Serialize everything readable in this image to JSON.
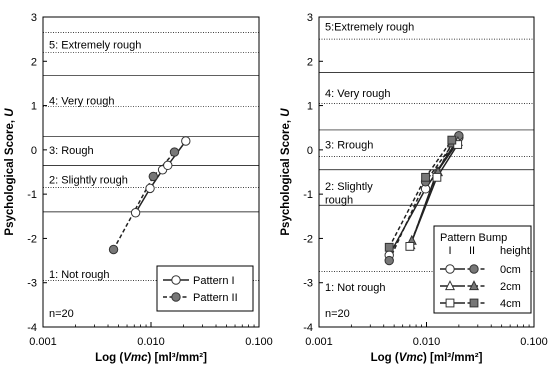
{
  "chart_data": [
    {
      "type": "line",
      "xlabel_prefix": "Log (",
      "xlabel_var": "Vmc",
      "xlabel_suffix": ")  [ml³/mm²]",
      "ylabel_prefix": "Psychological Score, ",
      "ylabel_var": "U",
      "x_scale": "log",
      "xlim": [
        0.001,
        0.1
      ],
      "ylim": [
        -4,
        3
      ],
      "x_ticks": [
        0.001,
        0.01,
        0.1
      ],
      "x_tick_labels": [
        "0.001",
        "0.010",
        "0.100"
      ],
      "y_ticks": [
        -4,
        -3,
        -2,
        -1,
        0,
        1,
        2,
        3
      ],
      "y_tick_labels": [
        "-4",
        "-3",
        "-2",
        "-1",
        "0",
        "1",
        "2",
        "3"
      ],
      "category_lines": [
        {
          "y": 2.65,
          "style": "dotted"
        },
        {
          "y": 2.2,
          "style": "dotted"
        },
        {
          "y": 1.68,
          "style": "solid"
        },
        {
          "y": 0.98,
          "style": "dotted"
        },
        {
          "y": 0.3,
          "style": "solid"
        },
        {
          "y": -0.35,
          "style": "solid"
        },
        {
          "y": -0.85,
          "style": "dotted"
        },
        {
          "y": -1.4,
          "style": "solid"
        },
        {
          "y": -2.95,
          "style": "dotted"
        }
      ],
      "categories": [
        {
          "label": "5: Extremely rough",
          "y": 2.38
        },
        {
          "label": "4: Very rough",
          "y": 1.12
        },
        {
          "label": "3: Rough",
          "y": 0.0
        },
        {
          "label": "2: Slightly rough",
          "y": -0.67
        },
        {
          "label": "1: Not rough",
          "y": -2.8
        }
      ],
      "note": "n=20",
      "series": [
        {
          "name": "Pattern I",
          "marker": "circle-open",
          "line": "solid",
          "points": [
            [
              0.0072,
              -1.42
            ],
            [
              0.0098,
              -0.87
            ],
            [
              0.0128,
              -0.45
            ],
            [
              0.0143,
              -0.35
            ],
            [
              0.021,
              0.2
            ]
          ]
        },
        {
          "name": "Pattern II",
          "marker": "circle-filled",
          "line": "dashed",
          "points": [
            [
              0.0045,
              -2.25
            ],
            [
              0.0105,
              -0.6
            ],
            [
              0.0165,
              -0.05
            ]
          ]
        }
      ],
      "legend": {
        "position": "bottom-right"
      }
    },
    {
      "type": "line",
      "xlabel_prefix": "Log (",
      "xlabel_var": "Vmc",
      "xlabel_suffix": ")  [ml³/mm²]",
      "ylabel_prefix": "Psychological Score, ",
      "ylabel_var": "U",
      "x_scale": "log",
      "xlim": [
        0.001,
        0.1
      ],
      "ylim": [
        -4,
        3
      ],
      "x_ticks": [
        0.001,
        0.01,
        0.1
      ],
      "x_tick_labels": [
        "0.001",
        "0.010",
        "0.100"
      ],
      "y_ticks": [
        -4,
        -3,
        -2,
        -1,
        0,
        1,
        2,
        3
      ],
      "y_tick_labels": [
        "-4",
        "-3",
        "-2",
        "-1",
        "0",
        "1",
        "2",
        "3"
      ],
      "category_lines": [
        {
          "y": 2.5,
          "style": "dotted"
        },
        {
          "y": 1.75,
          "style": "solid"
        },
        {
          "y": 1.05,
          "style": "dotted"
        },
        {
          "y": 0.45,
          "style": "solid"
        },
        {
          "y": -0.15,
          "style": "dotted"
        },
        {
          "y": -0.45,
          "style": "solid"
        },
        {
          "y": -1.25,
          "style": "solid"
        },
        {
          "y": -2.75,
          "style": "dotted"
        }
      ],
      "categories": [
        {
          "label": "5:Extremely rough",
          "y": 2.78
        },
        {
          "label": "4: Very rough",
          "y": 1.28
        },
        {
          "label": "3: Rrough",
          "y": 0.12
        },
        {
          "label": "2: Slightly",
          "y": -0.82
        },
        {
          "label": "rough",
          "y": -1.12
        },
        {
          "label": "1: Not rough",
          "y": -3.1
        }
      ],
      "note": "n=20",
      "legend": {
        "title_line1": "Pattern Bump",
        "col1": "I",
        "col2": "II",
        "col3": "height",
        "entries": [
          "0cm",
          "2cm",
          "4cm"
        ],
        "position": "bottom-right"
      },
      "series": [
        {
          "name": "I 0cm",
          "marker": "circle-open",
          "line": "solid",
          "points": [
            [
              0.0045,
              -2.38
            ],
            [
              0.0098,
              -0.88
            ],
            [
              0.02,
              0.28
            ]
          ]
        },
        {
          "name": "II 0cm",
          "marker": "circle-filled",
          "line": "dashed",
          "points": [
            [
              0.0045,
              -2.5
            ],
            [
              0.0098,
              -0.72
            ],
            [
              0.02,
              0.32
            ]
          ]
        },
        {
          "name": "I 2cm",
          "marker": "triangle-open",
          "line": "solid",
          "points": [
            [
              0.0071,
              -2.15
            ],
            [
              0.0125,
              -0.5
            ],
            [
              0.0196,
              0.18
            ]
          ]
        },
        {
          "name": "II 2cm",
          "marker": "triangle-filled",
          "line": "dashed",
          "points": [
            [
              0.0073,
              -2.05
            ],
            [
              0.0128,
              -0.5
            ],
            [
              0.0172,
              0.15
            ]
          ]
        },
        {
          "name": "I 4cm",
          "marker": "square-open",
          "line": "solid",
          "points": [
            [
              0.007,
              -2.18
            ],
            [
              0.0125,
              -0.62
            ],
            [
              0.0195,
              0.12
            ]
          ]
        },
        {
          "name": "II 4cm",
          "marker": "square-filled",
          "line": "dashed",
          "points": [
            [
              0.0045,
              -2.2
            ],
            [
              0.0098,
              -0.62
            ],
            [
              0.0172,
              0.22
            ]
          ]
        }
      ]
    }
  ]
}
